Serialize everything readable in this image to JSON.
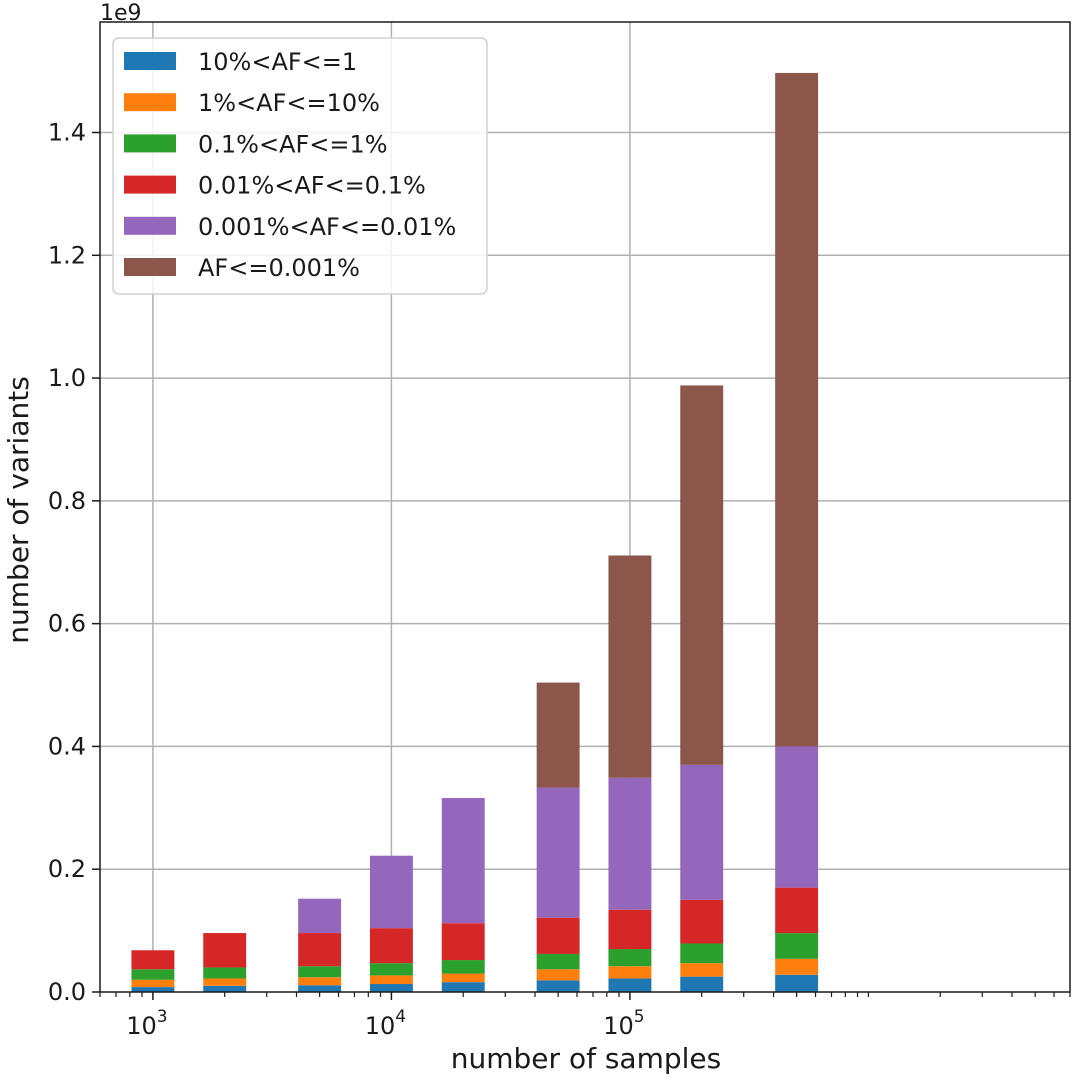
{
  "chart_data": {
    "type": "bar",
    "stacked": true,
    "xscale": "log",
    "xlabel": "number of samples",
    "ylabel": "number of variants",
    "y_offset_label": "1e9",
    "xlim": [
      600,
      7000000
    ],
    "ylim": [
      0,
      1.58
    ],
    "yticks": [
      "0.0",
      "0.2",
      "0.4",
      "0.6",
      "0.8",
      "1.0",
      "1.2",
      "1.4"
    ],
    "xticks": [
      {
        "base": "10",
        "exp": "3",
        "value": 1000
      },
      {
        "base": "10",
        "exp": "4",
        "value": 10000
      },
      {
        "base": "10",
        "exp": "5",
        "value": 100000
      }
    ],
    "grid": true,
    "legend_position": "top-left",
    "x": [
      1000,
      2000,
      5000,
      10000,
      20000,
      50000,
      100000,
      200000,
      500000
    ],
    "series": [
      {
        "name": "10%<AF<=1",
        "color": "#1f77b4",
        "values": [
          0.008,
          0.01,
          0.011,
          0.013,
          0.016,
          0.019,
          0.022,
          0.025,
          0.028
        ]
      },
      {
        "name": "1%<AF<=10%",
        "color": "#ff7f0e",
        "values": [
          0.012,
          0.012,
          0.013,
          0.014,
          0.014,
          0.018,
          0.02,
          0.022,
          0.026
        ]
      },
      {
        "name": "0.1%<AF<=1%",
        "color": "#2ca02c",
        "values": [
          0.017,
          0.018,
          0.018,
          0.02,
          0.022,
          0.025,
          0.028,
          0.032,
          0.042
        ]
      },
      {
        "name": "0.01%<AF<=0.1%",
        "color": "#d62728",
        "values": [
          0.031,
          0.056,
          0.054,
          0.057,
          0.06,
          0.059,
          0.064,
          0.071,
          0.074
        ]
      },
      {
        "name": "0.001%<AF<=0.01%",
        "color": "#9467bd",
        "values": [
          0.0,
          0.0,
          0.056,
          0.118,
          0.204,
          0.212,
          0.215,
          0.22,
          0.23
        ]
      },
      {
        "name": "AF<=0.001%",
        "color": "#8c564b",
        "values": [
          0.0,
          0.0,
          0.0,
          0.0,
          0.0,
          0.171,
          0.362,
          0.618,
          1.097
        ]
      }
    ]
  }
}
